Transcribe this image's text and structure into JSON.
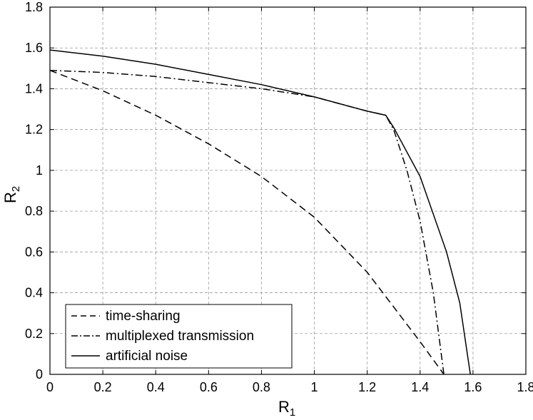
{
  "chart_data": {
    "type": "line",
    "xlabel": "R",
    "xlabel_sub": "1",
    "ylabel": "R",
    "ylabel_sub": "2",
    "xlim": [
      0,
      1.8
    ],
    "ylim": [
      0,
      1.8
    ],
    "xticks": [
      "0",
      "0.2",
      "0.4",
      "0.6",
      "0.8",
      "1",
      "1.2",
      "1.4",
      "1.6",
      "1.8"
    ],
    "yticks": [
      "0",
      "0.2",
      "0.4",
      "0.6",
      "0.8",
      "1",
      "1.2",
      "1.4",
      "1.6",
      "1.8"
    ],
    "grid": true,
    "legend_position": "bottom-left",
    "series": [
      {
        "name": "time-sharing",
        "style": "dashed",
        "color": "#000000",
        "points": [
          [
            0,
            1.49
          ],
          [
            0.2,
            1.39
          ],
          [
            0.4,
            1.27
          ],
          [
            0.6,
            1.13
          ],
          [
            0.8,
            0.97
          ],
          [
            1.0,
            0.77
          ],
          [
            1.2,
            0.5
          ],
          [
            1.4,
            0.16
          ],
          [
            1.49,
            0
          ]
        ]
      },
      {
        "name": "multiplexed transmission",
        "style": "dashdot",
        "color": "#000000",
        "points": [
          [
            0,
            1.49
          ],
          [
            0.2,
            1.48
          ],
          [
            0.4,
            1.46
          ],
          [
            0.6,
            1.43
          ],
          [
            0.8,
            1.4
          ],
          [
            1.0,
            1.36
          ],
          [
            1.2,
            1.29
          ],
          [
            1.27,
            1.27
          ],
          [
            1.3,
            1.2
          ],
          [
            1.35,
            1.0
          ],
          [
            1.4,
            0.75
          ],
          [
            1.45,
            0.4
          ],
          [
            1.49,
            0
          ]
        ]
      },
      {
        "name": "artificial noise",
        "style": "solid",
        "color": "#000000",
        "points": [
          [
            0,
            1.59
          ],
          [
            0.2,
            1.56
          ],
          [
            0.4,
            1.52
          ],
          [
            0.6,
            1.47
          ],
          [
            0.8,
            1.42
          ],
          [
            1.0,
            1.36
          ],
          [
            1.2,
            1.29
          ],
          [
            1.27,
            1.27
          ],
          [
            1.3,
            1.21
          ],
          [
            1.4,
            0.97
          ],
          [
            1.5,
            0.6
          ],
          [
            1.55,
            0.35
          ],
          [
            1.59,
            0
          ]
        ]
      }
    ]
  }
}
